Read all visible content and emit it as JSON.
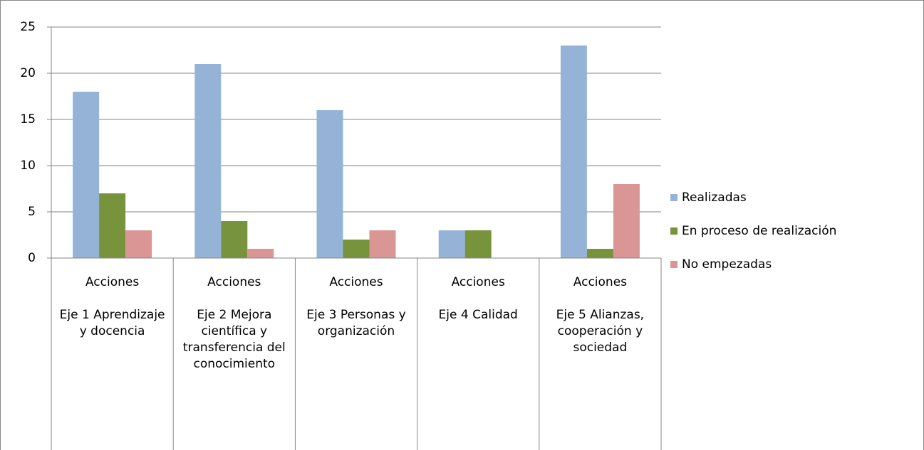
{
  "chart_data": {
    "type": "bar",
    "categories": [
      "Acciones",
      "Acciones",
      "Acciones",
      "Acciones",
      "Acciones"
    ],
    "groups": [
      "Eje 1 Aprendizaje y docencia",
      "Eje 2 Mejora científica y transferencia del conocimiento",
      "Eje 3 Personas y organización",
      "Eje 4 Calidad",
      "Eje 5 Alianzas, cooperación y sociedad"
    ],
    "series": [
      {
        "name": "Realizadas",
        "color": "#95b3d7",
        "values": [
          18,
          21,
          16,
          3,
          23
        ]
      },
      {
        "name": "En proceso de realización",
        "color": "#77933c",
        "values": [
          7,
          4,
          2,
          3,
          1
        ]
      },
      {
        "name": "No empezadas",
        "color": "#d99694",
        "values": [
          3,
          1,
          3,
          0,
          8
        ]
      }
    ],
    "ylim": [
      0,
      25
    ],
    "yticks": [
      0,
      5,
      10,
      15,
      20,
      25
    ],
    "grid": true,
    "legend": "right"
  }
}
